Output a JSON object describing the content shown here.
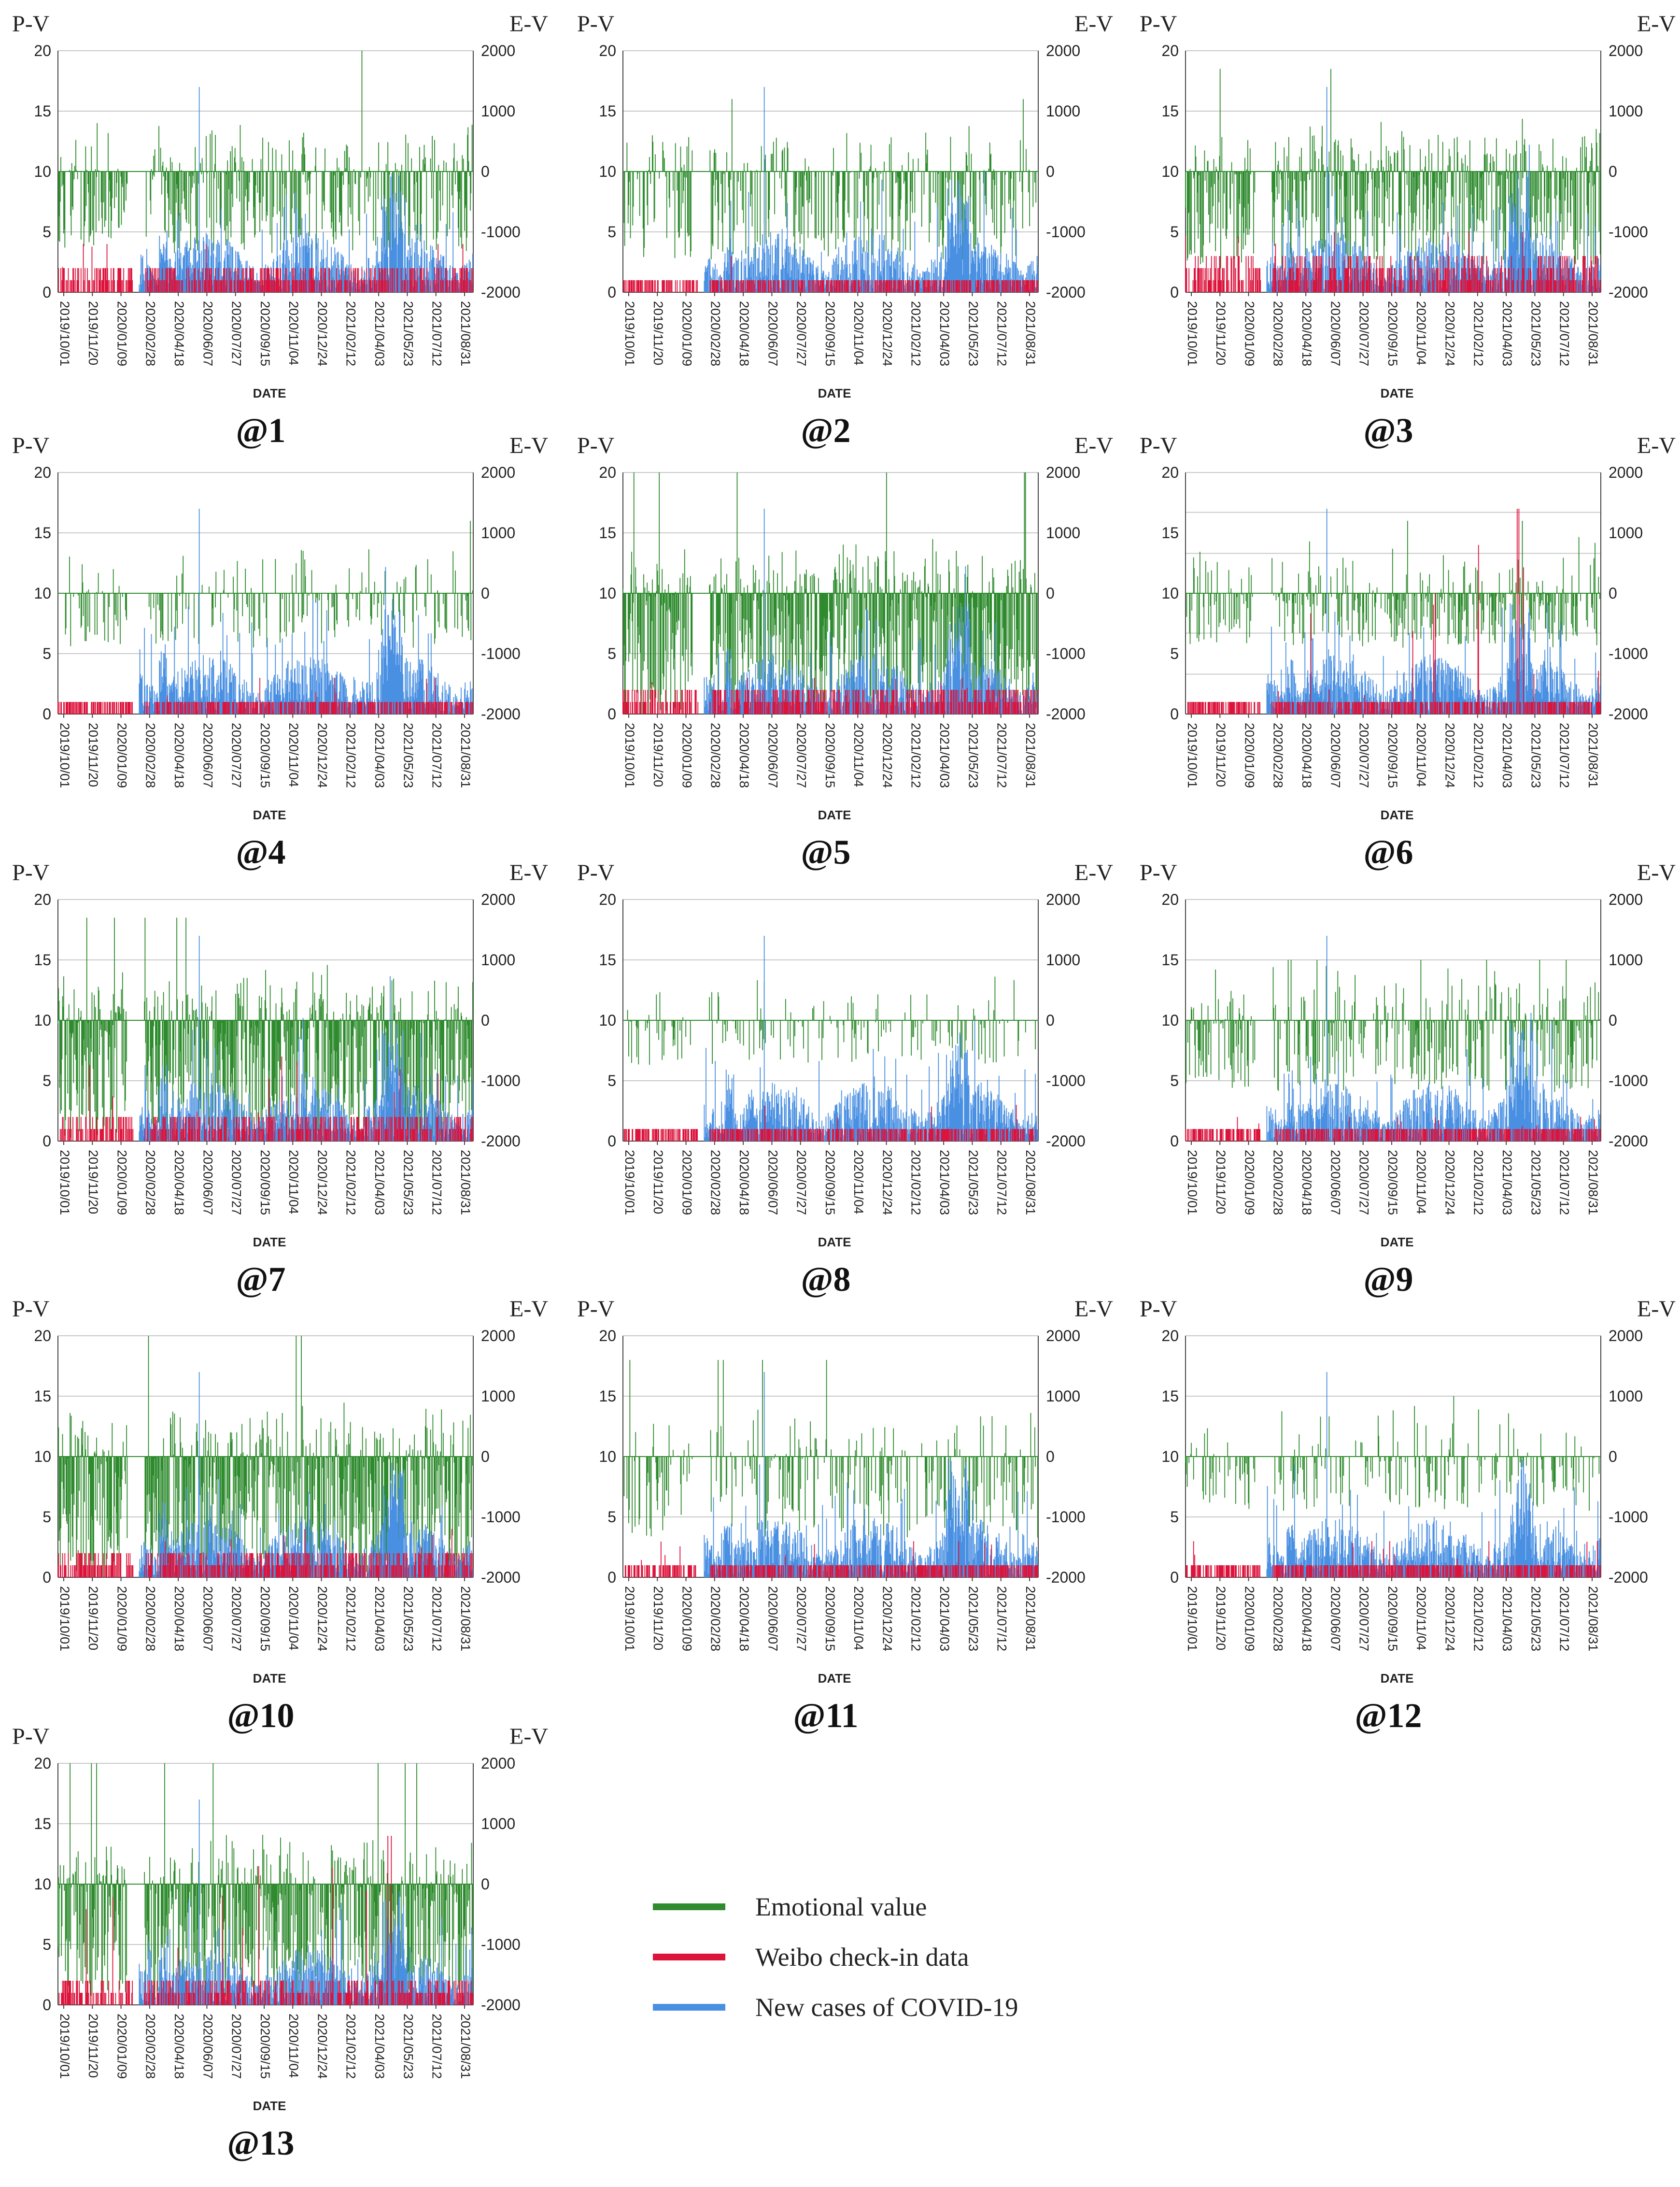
{
  "colors": {
    "emotion": "#2e8b2e",
    "weibo": "#dc143c",
    "covid": "#4a90e2",
    "grid": "#c8c8c8",
    "axis": "#444444"
  },
  "legend": [
    {
      "label": "Emotional value",
      "series": "emotion"
    },
    {
      "label": "Weibo check-in data",
      "series": "weibo"
    },
    {
      "label": "New cases of COVID-19",
      "series": "covid"
    }
  ],
  "chart_data": {
    "type": "bar",
    "description_units": "daily values, left axis P-V (0-20), right axis E-V (-2000 to 2000)",
    "shared": {
      "left_axis_label": "P-V",
      "right_axis_label": "E-V",
      "xlabel": "DATE",
      "left_ticks": [
        "0",
        "5",
        "10",
        "15",
        "20"
      ],
      "right_ticks": [
        "-2000",
        "-1000",
        "0",
        "1000",
        "2000"
      ],
      "ylim_left": [
        0,
        20
      ],
      "ylim_right": [
        -2000,
        2000
      ],
      "date_ticks": [
        "2019/10/01",
        "2019/11/20",
        "2020/01/09",
        "2020/02/28",
        "2020/04/18",
        "2020/06/07",
        "2020/07/27",
        "2020/09/15",
        "2020/11/04",
        "2020/12/24",
        "2021/02/12",
        "2021/04/03",
        "2021/05/23",
        "2021/07/12",
        "2021/08/31"
      ],
      "series_names": [
        "Emotional value",
        "Weibo check-in data",
        "New cases of COVID-19"
      ]
    },
    "panels": [
      {
        "label": "@1",
        "emotion_density": 0.55,
        "emotion_depth": 0.9,
        "emotion_peak": 2000,
        "weibo_level": 2,
        "weibo_peak": 4,
        "covid_peak": 17
      },
      {
        "label": "@2",
        "emotion_density": 0.45,
        "emotion_depth": 1.0,
        "emotion_peak": 1200,
        "weibo_level": 1,
        "weibo_peak": 3,
        "covid_peak": 17
      },
      {
        "label": "@3",
        "emotion_density": 0.75,
        "emotion_depth": 1.1,
        "emotion_peak": 1700,
        "weibo_level": 3,
        "weibo_peak": 5,
        "covid_peak": 17
      },
      {
        "label": "@4",
        "emotion_density": 0.3,
        "emotion_depth": 0.6,
        "emotion_peak": 1200,
        "weibo_level": 1,
        "weibo_peak": 3,
        "covid_peak": 17
      },
      {
        "label": "@5",
        "emotion_density": 0.85,
        "emotion_depth": 1.4,
        "emotion_peak": 2000,
        "weibo_level": 2,
        "weibo_peak": 3,
        "covid_peak": 17
      },
      {
        "label": "@6",
        "emotion_density": 0.5,
        "emotion_depth": 0.6,
        "emotion_peak": 1200,
        "weibo_level": 1,
        "weibo_peak": 17,
        "covid_peak": 17,
        "grid_variant": "offset"
      },
      {
        "label": "@7",
        "emotion_density": 0.85,
        "emotion_depth": 1.4,
        "emotion_peak": 1700,
        "weibo_level": 2,
        "weibo_peak": 7,
        "covid_peak": 17
      },
      {
        "label": "@8",
        "emotion_density": 0.25,
        "emotion_depth": 0.5,
        "emotion_peak": 1300,
        "weibo_level": 1,
        "weibo_peak": 3,
        "covid_peak": 17
      },
      {
        "label": "@9",
        "emotion_density": 0.5,
        "emotion_depth": 0.8,
        "emotion_peak": 1000,
        "weibo_level": 1,
        "weibo_peak": 2,
        "covid_peak": 17
      },
      {
        "label": "@10",
        "emotion_density": 0.8,
        "emotion_depth": 1.4,
        "emotion_peak": 2000,
        "weibo_level": 2,
        "weibo_peak": 4,
        "covid_peak": 17
      },
      {
        "label": "@11",
        "emotion_density": 0.4,
        "emotion_depth": 0.9,
        "emotion_peak": 1600,
        "weibo_level": 1,
        "weibo_peak": 3,
        "covid_peak": 17
      },
      {
        "label": "@12",
        "emotion_density": 0.3,
        "emotion_depth": 0.6,
        "emotion_peak": 1000,
        "weibo_level": 1,
        "weibo_peak": 3,
        "covid_peak": 17
      },
      {
        "label": "@13",
        "emotion_density": 0.8,
        "emotion_depth": 1.3,
        "emotion_peak": 2000,
        "weibo_level": 2,
        "weibo_peak": 14,
        "covid_peak": 17
      }
    ]
  }
}
